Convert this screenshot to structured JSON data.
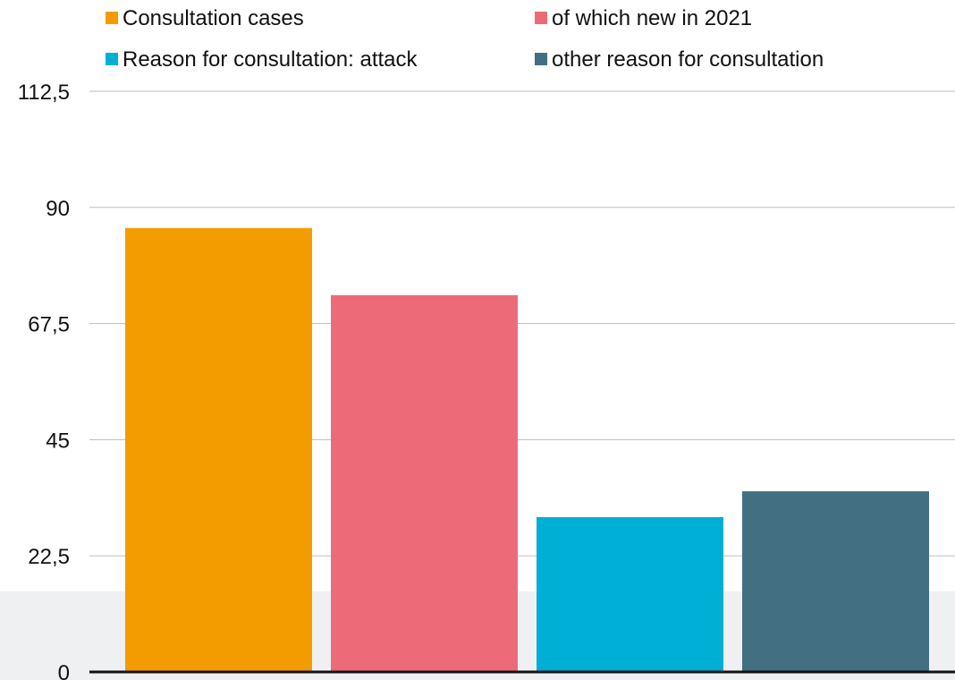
{
  "chart_data": {
    "type": "bar",
    "categories": [
      "Consultation cases",
      "of which new in  2021",
      "Reason for consultation: attack",
      "other reason for consultation"
    ],
    "values": [
      86,
      73,
      30,
      35
    ],
    "colors": [
      "#f39c00",
      "#ed6b78",
      "#00afd6",
      "#426f82"
    ],
    "ylim": [
      0,
      112.5
    ],
    "yticks": [
      0,
      22.5,
      45,
      67.5,
      90,
      112.5
    ],
    "ytick_labels": [
      "0",
      "22,5",
      "45",
      "67,5",
      "90",
      "112,5"
    ],
    "grid": true,
    "legend": "top",
    "title": "",
    "xlabel": "",
    "ylabel": ""
  }
}
